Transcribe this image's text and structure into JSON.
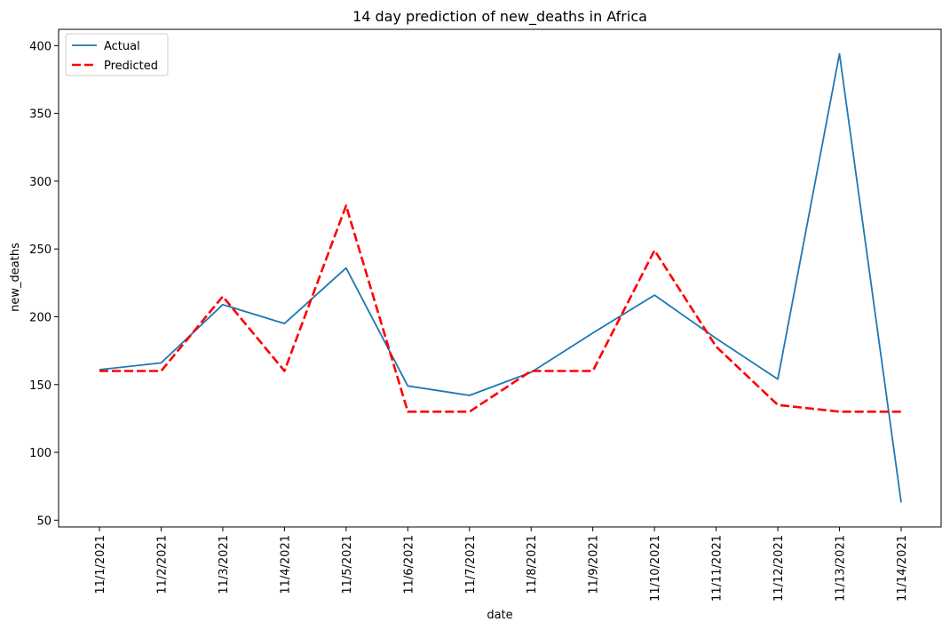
{
  "chart_data": {
    "type": "line",
    "title": "14 day prediction of new_deaths in Africa",
    "xlabel": "date",
    "ylabel": "new_deaths",
    "categories": [
      "11/1/2021",
      "11/2/2021",
      "11/3/2021",
      "11/4/2021",
      "11/5/2021",
      "11/6/2021",
      "11/7/2021",
      "11/8/2021",
      "11/9/2021",
      "11/10/2021",
      "11/11/2021",
      "11/12/2021",
      "11/13/2021",
      "11/14/2021"
    ],
    "ylim": [
      45,
      412
    ],
    "yticks": [
      50,
      100,
      150,
      200,
      250,
      300,
      350,
      400
    ],
    "grid": false,
    "legend_position": "top-left",
    "series": [
      {
        "name": "Actual",
        "color": "#1f77b4",
        "style": "solid",
        "values": [
          161,
          166,
          209,
          195,
          236,
          149,
          142,
          159,
          188,
          216,
          184,
          154,
          394,
          63
        ]
      },
      {
        "name": "Predicted",
        "color": "#ff0000",
        "style": "dashed",
        "values": [
          160,
          160,
          215,
          160,
          282,
          130,
          130,
          160,
          160,
          249,
          178,
          135,
          130,
          130
        ]
      }
    ]
  }
}
